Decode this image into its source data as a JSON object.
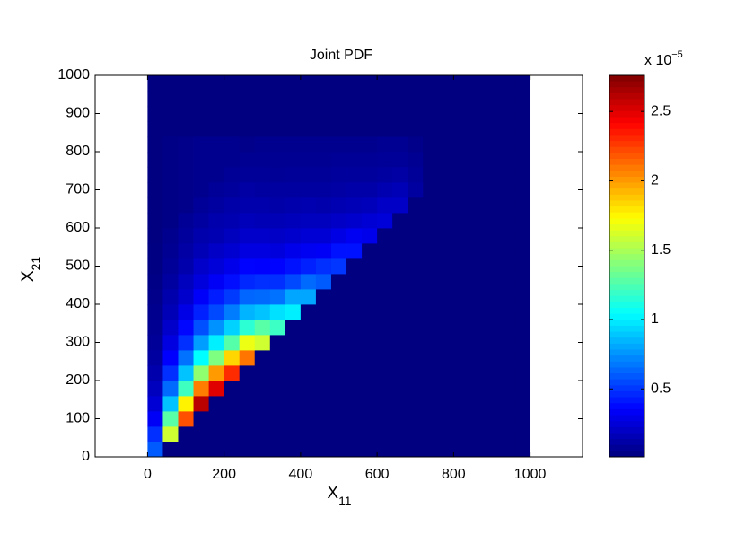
{
  "chart_data": {
    "type": "heatmap",
    "title": "Joint PDF",
    "xlabel": {
      "text": "X",
      "sub": "11"
    },
    "ylabel": {
      "text": "X",
      "sub": "21"
    },
    "xlim": [
      -137,
      1137
    ],
    "ylim": [
      0,
      1000
    ],
    "xticks": [
      0,
      200,
      400,
      600,
      800,
      1000
    ],
    "yticks": [
      0,
      100,
      200,
      300,
      400,
      500,
      600,
      700,
      800,
      900,
      1000
    ],
    "xbins": [
      0,
      40,
      80,
      120,
      160,
      200,
      240,
      280,
      320,
      360,
      400,
      440,
      480,
      520,
      560,
      600,
      640,
      680,
      720,
      760,
      800,
      840,
      880,
      920,
      960,
      1000
    ],
    "ybins": [
      0,
      40,
      80,
      120,
      160,
      200,
      240,
      280,
      320,
      360,
      400,
      440,
      480,
      520,
      560,
      600,
      640,
      680,
      720,
      760,
      800,
      840,
      880,
      920,
      960,
      1000
    ],
    "colormap": "jet",
    "clim": [
      0.01,
      2.76
    ],
    "colorbar_ticks": [
      0.5,
      1,
      1.5,
      2,
      2.5
    ],
    "colorbar_label": {
      "base": "x 10",
      "exponent": "−5"
    },
    "z": [
      [
        0.6,
        0,
        0,
        0,
        0,
        0,
        0,
        0,
        0,
        0,
        0,
        0,
        0,
        0,
        0,
        0,
        0,
        0,
        0,
        0,
        0,
        0,
        0,
        0,
        0
      ],
      [
        0.48,
        1.6,
        0,
        0,
        0,
        0,
        0,
        0,
        0,
        0,
        0,
        0,
        0,
        0,
        0,
        0,
        0,
        0,
        0,
        0,
        0,
        0,
        0,
        0,
        0
      ],
      [
        0.33,
        1.28,
        2.2,
        0,
        0,
        0,
        0,
        0,
        0,
        0,
        0,
        0,
        0,
        0,
        0,
        0,
        0,
        0,
        0,
        0,
        0,
        0,
        0,
        0,
        0
      ],
      [
        0.24,
        0.88,
        1.76,
        2.6,
        0,
        0,
        0,
        0,
        0,
        0,
        0,
        0,
        0,
        0,
        0,
        0,
        0,
        0,
        0,
        0,
        0,
        0,
        0,
        0,
        0
      ],
      [
        0.18,
        0.64,
        1.21,
        2.08,
        2.5,
        0,
        0,
        0,
        0,
        0,
        0,
        0,
        0,
        0,
        0,
        0,
        0,
        0,
        0,
        0,
        0,
        0,
        0,
        0,
        0
      ],
      [
        0.13,
        0.48,
        0.88,
        1.43,
        2.0,
        2.3,
        0,
        0,
        0,
        0,
        0,
        0,
        0,
        0,
        0,
        0,
        0,
        0,
        0,
        0,
        0,
        0,
        0,
        0,
        0
      ],
      [
        0.1,
        0.35,
        0.66,
        1.04,
        1.38,
        1.84,
        2.1,
        0,
        0,
        0,
        0,
        0,
        0,
        0,
        0,
        0,
        0,
        0,
        0,
        0,
        0,
        0,
        0,
        0,
        0
      ],
      [
        0.08,
        0.27,
        0.48,
        0.78,
        1.0,
        1.27,
        1.68,
        1.6,
        0,
        0,
        0,
        0,
        0,
        0,
        0,
        0,
        0,
        0,
        0,
        0,
        0,
        0,
        0,
        0,
        0
      ],
      [
        0.06,
        0.21,
        0.37,
        0.57,
        0.75,
        0.92,
        1.16,
        1.28,
        1.2,
        0,
        0,
        0,
        0,
        0,
        0,
        0,
        0,
        0,
        0,
        0,
        0,
        0,
        0,
        0,
        0
      ],
      [
        0.05,
        0.16,
        0.29,
        0.44,
        0.55,
        0.69,
        0.84,
        0.88,
        0.96,
        1.0,
        0,
        0,
        0,
        0,
        0,
        0,
        0,
        0,
        0,
        0,
        0,
        0,
        0,
        0,
        0
      ],
      [
        0.04,
        0.13,
        0.22,
        0.34,
        0.43,
        0.51,
        0.63,
        0.64,
        0.66,
        0.8,
        0.8,
        0,
        0,
        0,
        0,
        0,
        0,
        0,
        0,
        0,
        0,
        0,
        0,
        0,
        0
      ],
      [
        0.03,
        0.1,
        0.18,
        0.26,
        0.33,
        0.39,
        0.46,
        0.48,
        0.48,
        0.55,
        0.64,
        0.6,
        0,
        0,
        0,
        0,
        0,
        0,
        0,
        0,
        0,
        0,
        0,
        0,
        0
      ],
      [
        0.02,
        0.08,
        0.13,
        0.21,
        0.25,
        0.3,
        0.36,
        0.35,
        0.36,
        0.4,
        0.44,
        0.48,
        0.5,
        0,
        0,
        0,
        0,
        0,
        0,
        0,
        0,
        0,
        0,
        0,
        0
      ],
      [
        0.02,
        0.06,
        0.11,
        0.16,
        0.2,
        0.23,
        0.27,
        0.27,
        0.26,
        0.3,
        0.32,
        0.33,
        0.4,
        0.4,
        0,
        0,
        0,
        0,
        0,
        0,
        0,
        0,
        0,
        0,
        0
      ],
      [
        0.01,
        0.05,
        0.09,
        0.13,
        0.15,
        0.18,
        0.21,
        0.21,
        0.2,
        0.22,
        0.24,
        0.24,
        0.28,
        0.32,
        0.3,
        0,
        0,
        0,
        0,
        0,
        0,
        0,
        0,
        0,
        0
      ],
      [
        0.01,
        0.03,
        0.07,
        0.1,
        0.13,
        0.14,
        0.17,
        0.16,
        0.16,
        0.17,
        0.18,
        0.18,
        0.2,
        0.22,
        0.24,
        0.25,
        0,
        0,
        0,
        0,
        0,
        0,
        0,
        0,
        0
      ],
      [
        0.01,
        0.03,
        0.04,
        0.08,
        0.1,
        0.12,
        0.13,
        0.13,
        0.12,
        0.13,
        0.14,
        0.13,
        0.15,
        0.16,
        0.17,
        0.2,
        0.2,
        0,
        0,
        0,
        0,
        0,
        0,
        0,
        0
      ],
      [
        0.01,
        0.03,
        0.04,
        0.05,
        0.08,
        0.09,
        0.11,
        0.1,
        0.1,
        0.1,
        0.1,
        0.1,
        0.11,
        0.12,
        0.12,
        0.14,
        0.16,
        0.1,
        0,
        0,
        0,
        0,
        0,
        0,
        0
      ],
      [
        0.01,
        0.03,
        0.04,
        0.05,
        0.05,
        0.07,
        0.08,
        0.08,
        0.07,
        0.08,
        0.08,
        0.08,
        0.09,
        0.09,
        0.09,
        0.1,
        0.11,
        0.08,
        0,
        0,
        0,
        0,
        0,
        0,
        0
      ],
      [
        0.01,
        0.03,
        0.04,
        0.05,
        0.05,
        0.05,
        0.06,
        0.06,
        0.06,
        0.06,
        0.06,
        0.06,
        0.07,
        0.07,
        0.07,
        0.08,
        0.08,
        0.06,
        0,
        0,
        0,
        0,
        0,
        0,
        0
      ],
      [
        0.01,
        0.03,
        0.04,
        0.05,
        0.05,
        0.05,
        0.04,
        0.05,
        0.05,
        0.05,
        0.05,
        0.05,
        0.05,
        0.05,
        0.05,
        0.06,
        0.06,
        0.04,
        0,
        0,
        0,
        0,
        0,
        0,
        0
      ],
      [
        0,
        0,
        0,
        0,
        0,
        0,
        0,
        0,
        0,
        0,
        0,
        0,
        0,
        0,
        0,
        0,
        0,
        0,
        0,
        0,
        0,
        0,
        0,
        0,
        0
      ],
      [
        0,
        0,
        0,
        0,
        0,
        0,
        0,
        0,
        0,
        0,
        0,
        0,
        0,
        0,
        0,
        0,
        0,
        0,
        0,
        0,
        0,
        0,
        0,
        0,
        0
      ],
      [
        0,
        0,
        0,
        0,
        0,
        0,
        0,
        0,
        0,
        0,
        0,
        0,
        0,
        0,
        0,
        0,
        0,
        0,
        0,
        0,
        0,
        0,
        0,
        0,
        0
      ],
      [
        0,
        0,
        0,
        0,
        0,
        0,
        0,
        0,
        0,
        0,
        0,
        0,
        0,
        0,
        0,
        0,
        0,
        0,
        0,
        0,
        0,
        0,
        0,
        0,
        0
      ]
    ]
  }
}
